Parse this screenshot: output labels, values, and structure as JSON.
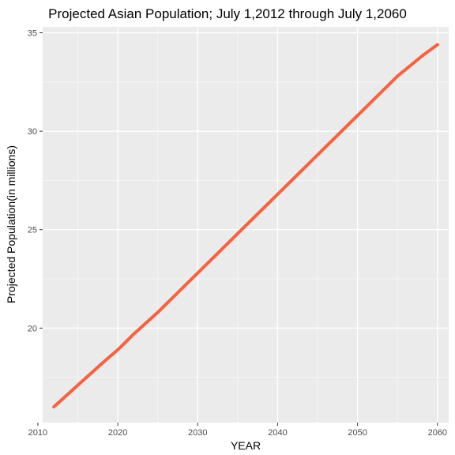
{
  "chart_data": {
    "type": "line",
    "title": "Projected Asian Population; July 1,2012 through July 1,2060",
    "xlabel": "YEAR",
    "ylabel": "Projected Population(in millions)",
    "xlim": [
      2010.6,
      2061.4
    ],
    "ylim": [
      15.2,
      35.3
    ],
    "x_ticks": [
      2010,
      2020,
      2030,
      2040,
      2050,
      2060
    ],
    "y_ticks": [
      20,
      25,
      30,
      35
    ],
    "grid": true,
    "legend": "none",
    "colors": {
      "panel_background": "#ebebeb",
      "grid_major": "#ffffff",
      "grid_minor": "#f5f5f5",
      "line": "#f8613f"
    },
    "series": [
      {
        "x": [
          2012,
          2015,
          2018,
          2020,
          2022,
          2025,
          2028,
          2030,
          2033,
          2035,
          2038,
          2040,
          2043,
          2045,
          2048,
          2050,
          2053,
          2055,
          2058,
          2060
        ],
        "values": [
          16.0,
          17.1,
          18.2,
          18.9,
          19.7,
          20.8,
          22.0,
          22.8,
          24.0,
          24.8,
          26.0,
          26.8,
          28.0,
          28.8,
          30.0,
          30.8,
          32.0,
          32.8,
          33.8,
          34.4
        ]
      }
    ]
  }
}
